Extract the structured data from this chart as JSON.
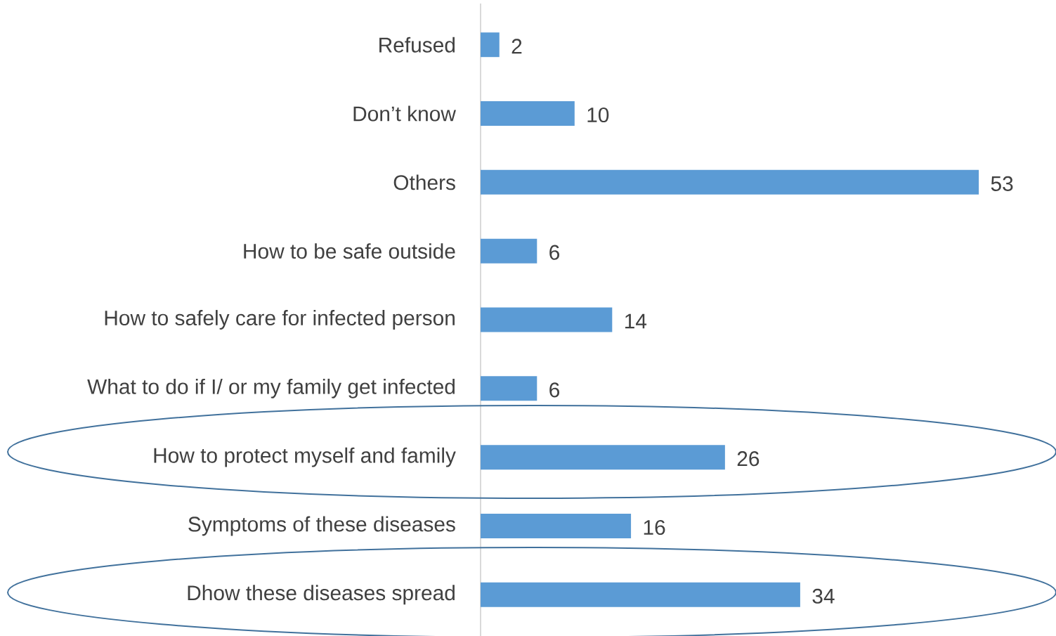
{
  "chart_data": {
    "type": "bar",
    "orientation": "horizontal",
    "categories": [
      "Refused",
      "Don’t know",
      "Others",
      "How to be safe outside",
      "How to safely care for infected person",
      "What to do if I/ or my family get infected",
      "How to protect myself and family",
      "Symptoms of these diseases",
      "Dhow these diseases spread"
    ],
    "values": [
      2,
      10,
      53,
      6,
      14,
      6,
      26,
      16,
      34
    ],
    "color": "#5b9bd5",
    "data_labels": true
  }
}
